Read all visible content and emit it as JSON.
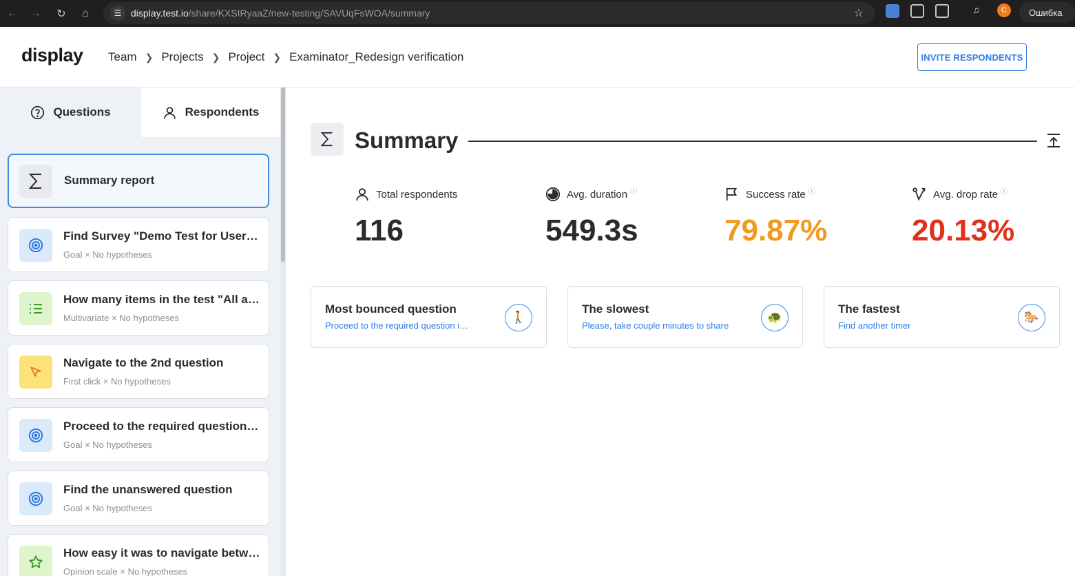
{
  "browser": {
    "url_host": "display.test.io",
    "url_path": "/share/KXSIRyaaZ/new-testing/SAVUqFsWOA/summary",
    "profile_initial": "C",
    "error_label": "Ошибка"
  },
  "header": {
    "logo": "display",
    "breadcrumb": [
      "Team",
      "Projects",
      "Project",
      "Examinator_Redesign verification"
    ],
    "invite_label": "INVITE RESPONDENTS"
  },
  "sidebar": {
    "tabs": [
      {
        "label": "Questions",
        "icon": "question-circle-icon"
      },
      {
        "label": "Respondents",
        "icon": "user-icon"
      }
    ],
    "items": [
      {
        "title": "Summary report",
        "subtitle": "",
        "icon": "sigma-icon",
        "active": true
      },
      {
        "title": "Find Survey \"Demo Test for Users\" and proceed",
        "subtitle": "Goal × No hypotheses",
        "icon": "target-icon"
      },
      {
        "title": "How many items in the test \"All about\"",
        "subtitle": "Multivariate × No hypotheses",
        "icon": "list-icon"
      },
      {
        "title": "Navigate to the 2nd question",
        "subtitle": "First click × No hypotheses",
        "icon": "cursor-icon"
      },
      {
        "title": "Proceed to the required question in the test",
        "subtitle": "Goal × No hypotheses",
        "icon": "target-icon"
      },
      {
        "title": "Find the unanswered question",
        "subtitle": "Goal × No hypotheses",
        "icon": "target-icon"
      },
      {
        "title": "How easy it was to navigate between questions",
        "subtitle": "Opinion scale × No hypotheses",
        "icon": "star-icon"
      }
    ]
  },
  "summary": {
    "title": "Summary",
    "stats": [
      {
        "label": "Total respondents",
        "value": "116",
        "info": false,
        "color": "#2b2b2b",
        "icon": "user-icon"
      },
      {
        "label": "Avg. duration",
        "value": "549.3s",
        "info": true,
        "color": "#2b2b2b",
        "icon": "clock-icon"
      },
      {
        "label": "Success rate",
        "value": "79.87%",
        "info": true,
        "color": "#f29a1f",
        "icon": "flag-icon"
      },
      {
        "label": "Avg. drop rate",
        "value": "20.13%",
        "info": true,
        "color": "#e0311b",
        "icon": "drop-icon"
      }
    ],
    "highlights": [
      {
        "title": "Most bounced question",
        "link": "Proceed to the required question in the test",
        "emoji": "🚶",
        "icon": "walker-icon"
      },
      {
        "title": "The slowest",
        "link": "Please, take couple minutes to share",
        "emoji": "🐢",
        "icon": "turtle-icon"
      },
      {
        "title": "The fastest",
        "link": "Find another timer",
        "emoji": "🐎",
        "icon": "horse-icon"
      }
    ],
    "info_glyph": "ⓘ"
  },
  "colors": {
    "accent": "#2f7de1",
    "success": "#f29a1f",
    "drop": "#e0311b"
  }
}
